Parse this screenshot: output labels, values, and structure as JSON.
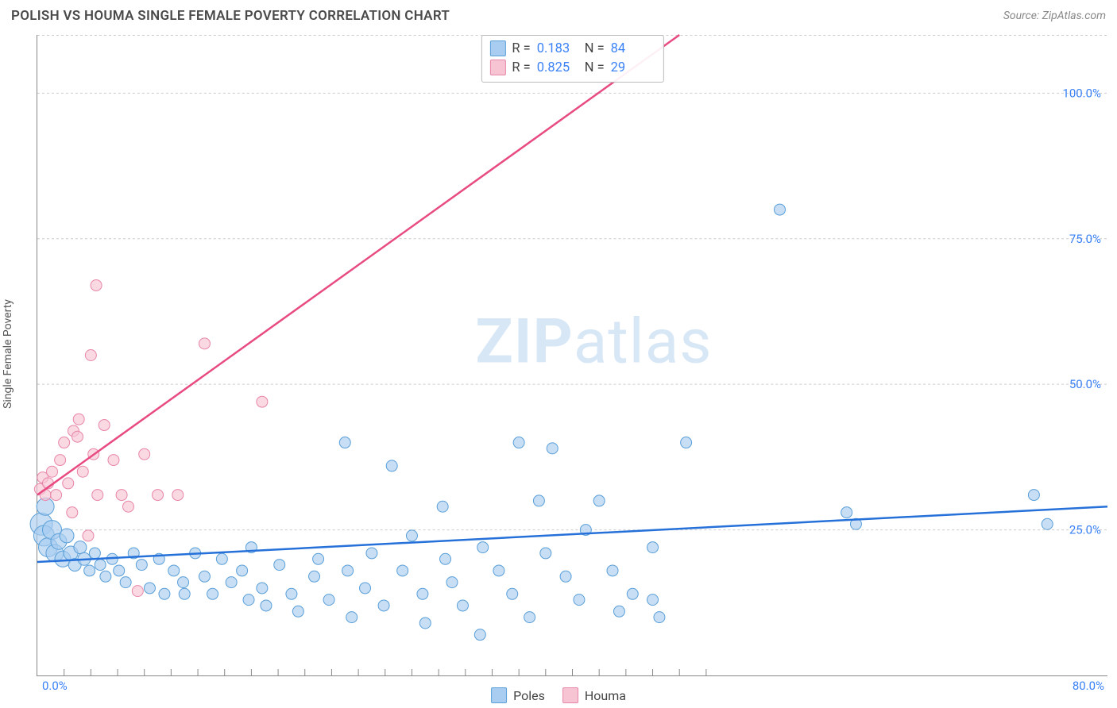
{
  "title": "POLISH VS HOUMA SINGLE FEMALE POVERTY CORRELATION CHART",
  "source": "Source: ZipAtlas.com",
  "y_axis_label": "Single Female Poverty",
  "watermark": {
    "a": "ZIP",
    "b": "atlas"
  },
  "chart": {
    "type": "scatter",
    "xlim": [
      0,
      80
    ],
    "ylim": [
      0,
      110
    ],
    "background_color": "#ffffff",
    "grid_color": "#cccccc",
    "grid_dash": "3 3",
    "axis_color": "#888888",
    "x_ticks_major": [
      0,
      80
    ],
    "x_ticks_major_labels": [
      "0.0%",
      "80.0%"
    ],
    "x_ticks_minor": [
      2,
      4,
      6,
      8,
      10,
      12,
      14,
      16,
      18,
      20,
      22,
      24,
      26,
      28,
      30,
      32,
      34,
      36,
      38,
      40,
      42,
      44,
      46,
      48,
      50
    ],
    "y_ticks": [
      25,
      50,
      75,
      100
    ],
    "y_tick_labels": [
      "25.0%",
      "50.0%",
      "75.0%",
      "100.0%"
    ],
    "tick_label_color": "#3b82f6",
    "tick_label_fontsize": 15,
    "series": [
      {
        "name": "Poles",
        "color_fill": "#a9cdf0",
        "color_stroke": "#5a9fd8",
        "fill_opacity": 0.65,
        "marker_radius_default": 7,
        "trend": {
          "color": "#2671d9",
          "width": 2.5,
          "x1": 0,
          "y1": 19.5,
          "x2": 80,
          "y2": 29
        },
        "R": 0.183,
        "N": 84,
        "points": [
          {
            "x": 0.3,
            "y": 26,
            "r": 14
          },
          {
            "x": 0.5,
            "y": 24,
            "r": 13
          },
          {
            "x": 0.8,
            "y": 22,
            "r": 12
          },
          {
            "x": 0.6,
            "y": 29,
            "r": 11
          },
          {
            "x": 1.1,
            "y": 25,
            "r": 12
          },
          {
            "x": 1.3,
            "y": 21,
            "r": 11
          },
          {
            "x": 1.6,
            "y": 23,
            "r": 10
          },
          {
            "x": 1.9,
            "y": 20,
            "r": 10
          },
          {
            "x": 2.2,
            "y": 24,
            "r": 9
          },
          {
            "x": 2.5,
            "y": 21,
            "r": 9
          },
          {
            "x": 2.8,
            "y": 19,
            "r": 8
          },
          {
            "x": 3.2,
            "y": 22,
            "r": 8
          },
          {
            "x": 3.5,
            "y": 20,
            "r": 8
          },
          {
            "x": 3.9,
            "y": 18,
            "r": 7
          },
          {
            "x": 4.3,
            "y": 21,
            "r": 7
          },
          {
            "x": 4.7,
            "y": 19,
            "r": 7
          },
          {
            "x": 5.1,
            "y": 17,
            "r": 7
          },
          {
            "x": 5.6,
            "y": 20,
            "r": 7
          },
          {
            "x": 6.1,
            "y": 18,
            "r": 7
          },
          {
            "x": 6.6,
            "y": 16,
            "r": 7
          },
          {
            "x": 7.2,
            "y": 21,
            "r": 7
          },
          {
            "x": 7.8,
            "y": 19,
            "r": 7
          },
          {
            "x": 8.4,
            "y": 15,
            "r": 7
          },
          {
            "x": 9.1,
            "y": 20,
            "r": 7
          },
          {
            "x": 9.5,
            "y": 14,
            "r": 7
          },
          {
            "x": 10.2,
            "y": 18,
            "r": 7
          },
          {
            "x": 10.9,
            "y": 16,
            "r": 7
          },
          {
            "x": 11.0,
            "y": 14,
            "r": 7
          },
          {
            "x": 11.8,
            "y": 21,
            "r": 7
          },
          {
            "x": 12.5,
            "y": 17,
            "r": 7
          },
          {
            "x": 13.1,
            "y": 14,
            "r": 7
          },
          {
            "x": 13.8,
            "y": 20,
            "r": 7
          },
          {
            "x": 14.5,
            "y": 16,
            "r": 7
          },
          {
            "x": 15.3,
            "y": 18,
            "r": 7
          },
          {
            "x": 15.8,
            "y": 13,
            "r": 7
          },
          {
            "x": 16.0,
            "y": 22,
            "r": 7
          },
          {
            "x": 16.8,
            "y": 15,
            "r": 7
          },
          {
            "x": 17.1,
            "y": 12,
            "r": 7
          },
          {
            "x": 18.1,
            "y": 19,
            "r": 7
          },
          {
            "x": 19.0,
            "y": 14,
            "r": 7
          },
          {
            "x": 19.5,
            "y": 11,
            "r": 7
          },
          {
            "x": 20.7,
            "y": 17,
            "r": 7
          },
          {
            "x": 21.0,
            "y": 20,
            "r": 7
          },
          {
            "x": 21.8,
            "y": 13,
            "r": 7
          },
          {
            "x": 23.0,
            "y": 40,
            "r": 7
          },
          {
            "x": 23.2,
            "y": 18,
            "r": 7
          },
          {
            "x": 23.5,
            "y": 10,
            "r": 7
          },
          {
            "x": 24.5,
            "y": 15,
            "r": 7
          },
          {
            "x": 25.0,
            "y": 21,
            "r": 7
          },
          {
            "x": 25.9,
            "y": 12,
            "r": 7
          },
          {
            "x": 26.5,
            "y": 36,
            "r": 7
          },
          {
            "x": 27.3,
            "y": 18,
            "r": 7
          },
          {
            "x": 28.0,
            "y": 24,
            "r": 7
          },
          {
            "x": 28.8,
            "y": 14,
            "r": 7
          },
          {
            "x": 29.0,
            "y": 9,
            "r": 7
          },
          {
            "x": 30.3,
            "y": 29,
            "r": 7
          },
          {
            "x": 30.5,
            "y": 20,
            "r": 7
          },
          {
            "x": 31.0,
            "y": 16,
            "r": 7
          },
          {
            "x": 31.8,
            "y": 12,
            "r": 7
          },
          {
            "x": 33.3,
            "y": 22,
            "r": 7
          },
          {
            "x": 33.1,
            "y": 7,
            "r": 7
          },
          {
            "x": 34.5,
            "y": 18,
            "r": 7
          },
          {
            "x": 35.5,
            "y": 14,
            "r": 7
          },
          {
            "x": 36.0,
            "y": 40,
            "r": 7
          },
          {
            "x": 36.8,
            "y": 10,
            "r": 7
          },
          {
            "x": 37.5,
            "y": 30,
            "r": 7
          },
          {
            "x": 38.0,
            "y": 21,
            "r": 7
          },
          {
            "x": 38.5,
            "y": 39,
            "r": 7
          },
          {
            "x": 39.5,
            "y": 17,
            "r": 7
          },
          {
            "x": 40.5,
            "y": 13,
            "r": 7
          },
          {
            "x": 41.0,
            "y": 25,
            "r": 7
          },
          {
            "x": 42.0,
            "y": 30,
            "r": 7
          },
          {
            "x": 43.0,
            "y": 18,
            "r": 7
          },
          {
            "x": 43.5,
            "y": 11,
            "r": 7
          },
          {
            "x": 44.5,
            "y": 14,
            "r": 7
          },
          {
            "x": 46.0,
            "y": 22,
            "r": 7
          },
          {
            "x": 46.0,
            "y": 13,
            "r": 7
          },
          {
            "x": 46.5,
            "y": 10,
            "r": 7
          },
          {
            "x": 48.5,
            "y": 40,
            "r": 7
          },
          {
            "x": 55.5,
            "y": 80,
            "r": 7
          },
          {
            "x": 60.5,
            "y": 28,
            "r": 7
          },
          {
            "x": 61.2,
            "y": 26,
            "r": 7
          },
          {
            "x": 74.5,
            "y": 31,
            "r": 7
          },
          {
            "x": 75.5,
            "y": 26,
            "r": 7
          }
        ]
      },
      {
        "name": "Houma",
        "color_fill": "#f7c4d4",
        "color_stroke": "#e886a8",
        "fill_opacity": 0.65,
        "marker_radius_default": 7,
        "trend": {
          "color": "#e84b81",
          "width": 2.5,
          "x1": 0,
          "y1": 31,
          "x2": 48,
          "y2": 110
        },
        "R": 0.825,
        "N": 29,
        "points": [
          {
            "x": 0.2,
            "y": 32,
            "r": 7
          },
          {
            "x": 0.4,
            "y": 34,
            "r": 7
          },
          {
            "x": 0.6,
            "y": 31,
            "r": 7
          },
          {
            "x": 0.8,
            "y": 33,
            "r": 7
          },
          {
            "x": 1.1,
            "y": 35,
            "r": 7
          },
          {
            "x": 1.4,
            "y": 31,
            "r": 7
          },
          {
            "x": 1.7,
            "y": 37,
            "r": 7
          },
          {
            "x": 2.0,
            "y": 40,
            "r": 7
          },
          {
            "x": 2.3,
            "y": 33,
            "r": 7
          },
          {
            "x": 2.7,
            "y": 42,
            "r": 7
          },
          {
            "x": 2.6,
            "y": 28,
            "r": 7
          },
          {
            "x": 3.0,
            "y": 41,
            "r": 7
          },
          {
            "x": 3.1,
            "y": 44,
            "r": 7
          },
          {
            "x": 3.4,
            "y": 35,
            "r": 7
          },
          {
            "x": 3.8,
            "y": 24,
            "r": 7
          },
          {
            "x": 4.0,
            "y": 55,
            "r": 7
          },
          {
            "x": 4.2,
            "y": 38,
            "r": 7
          },
          {
            "x": 4.5,
            "y": 31,
            "r": 7
          },
          {
            "x": 4.4,
            "y": 67,
            "r": 7
          },
          {
            "x": 5.0,
            "y": 43,
            "r": 7
          },
          {
            "x": 5.7,
            "y": 37,
            "r": 7
          },
          {
            "x": 6.3,
            "y": 31,
            "r": 7
          },
          {
            "x": 6.8,
            "y": 29,
            "r": 7
          },
          {
            "x": 7.5,
            "y": 14.5,
            "r": 7
          },
          {
            "x": 8.0,
            "y": 38,
            "r": 7
          },
          {
            "x": 9.0,
            "y": 31,
            "r": 7
          },
          {
            "x": 10.5,
            "y": 31,
            "r": 7
          },
          {
            "x": 12.5,
            "y": 57,
            "r": 7
          },
          {
            "x": 16.8,
            "y": 47,
            "r": 7
          }
        ]
      }
    ]
  },
  "stats_box": {
    "rows": [
      {
        "swatch": "blue",
        "r_label": "R = ",
        "r_val": "0.183",
        "n_label": "N = ",
        "n_val": "84"
      },
      {
        "swatch": "pink",
        "r_label": "R = ",
        "r_val": "0.825",
        "n_label": "N = ",
        "n_val": "29"
      }
    ]
  },
  "legend": {
    "items": [
      {
        "swatch": "blue",
        "label": "Poles"
      },
      {
        "swatch": "pink",
        "label": "Houma"
      }
    ]
  }
}
